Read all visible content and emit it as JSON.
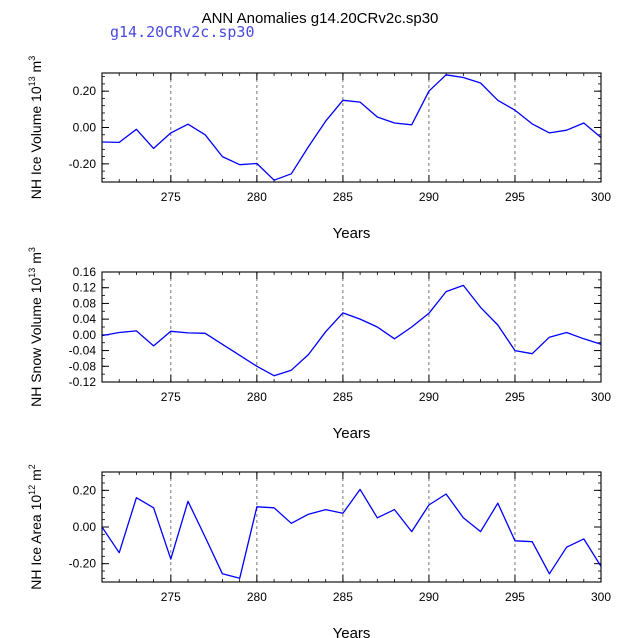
{
  "title": "ANN Anomalies g14.20CRv2c.sp30",
  "subtitle": "g14.20CRv2c.sp30",
  "colors": {
    "line": "#0000ff",
    "axis": "#000000",
    "grid": "#555555",
    "subtitle": "#4a4ae0"
  },
  "chart_data": [
    {
      "type": "line",
      "ylabel": {
        "prefix": "NH Ice Volume 10",
        "exp1": "13",
        "mid": " m",
        "exp2": "3"
      },
      "xlabel": "Years",
      "xlim": [
        271,
        300
      ],
      "ylim": [
        -0.3,
        0.3
      ],
      "xticks": [
        275,
        280,
        285,
        290,
        295,
        300
      ],
      "xtick_labels": [
        "275",
        "280",
        "285",
        "290",
        "295",
        "300"
      ],
      "yticks": [
        0.2,
        0.0,
        -0.2
      ],
      "ytick_labels": [
        "0.20",
        "0.00",
        "-0.20"
      ],
      "grid": "vertical dashed",
      "x": [
        271,
        272,
        273,
        274,
        275,
        276,
        277,
        278,
        279,
        280,
        281,
        282,
        283,
        284,
        285,
        286,
        287,
        288,
        289,
        290,
        291,
        292,
        293,
        294,
        295,
        296,
        297,
        298,
        299,
        300
      ],
      "values": [
        -0.08,
        -0.082,
        -0.01,
        -0.115,
        -0.03,
        0.018,
        -0.04,
        -0.16,
        -0.205,
        -0.198,
        -0.29,
        -0.255,
        -0.105,
        0.035,
        0.15,
        0.14,
        0.058,
        0.025,
        0.015,
        0.2,
        0.29,
        0.275,
        0.245,
        0.15,
        0.095,
        0.02,
        -0.03,
        -0.015,
        0.025,
        -0.055
      ]
    },
    {
      "type": "line",
      "ylabel": {
        "prefix": "NH Snow Volume 10",
        "exp1": "13",
        "mid": " m",
        "exp2": "3"
      },
      "xlabel": "Years",
      "xlim": [
        271,
        300
      ],
      "ylim": [
        -0.12,
        0.16
      ],
      "xticks": [
        275,
        280,
        285,
        290,
        295,
        300
      ],
      "xtick_labels": [
        "275",
        "280",
        "285",
        "290",
        "295",
        "300"
      ],
      "yticks": [
        0.16,
        0.12,
        0.08,
        0.04,
        0.0,
        -0.04,
        -0.08,
        -0.12
      ],
      "ytick_labels": [
        "0.16",
        "0.12",
        "0.08",
        "0.04",
        "0.00",
        "-0.04",
        "-0.08",
        "-0.12"
      ],
      "grid": "vertical dashed",
      "x": [
        271,
        272,
        273,
        274,
        275,
        276,
        277,
        278,
        279,
        280,
        281,
        282,
        283,
        284,
        285,
        286,
        287,
        288,
        289,
        290,
        291,
        292,
        293,
        294,
        295,
        296,
        297,
        298,
        299,
        300
      ],
      "values": [
        -0.002,
        0.006,
        0.01,
        -0.028,
        0.009,
        0.005,
        0.004,
        -0.024,
        -0.052,
        -0.08,
        -0.104,
        -0.09,
        -0.05,
        0.008,
        0.056,
        0.04,
        0.02,
        -0.01,
        0.02,
        0.055,
        0.11,
        0.126,
        0.07,
        0.025,
        -0.04,
        -0.048,
        -0.006,
        0.006,
        -0.01,
        -0.024
      ]
    },
    {
      "type": "line",
      "ylabel": {
        "prefix": "NH Ice Area 10",
        "exp1": "12",
        "mid": " m",
        "exp2": "2"
      },
      "xlabel": "Years",
      "xlim": [
        271,
        300
      ],
      "ylim": [
        -0.3,
        0.3
      ],
      "xticks": [
        275,
        280,
        285,
        290,
        295,
        300
      ],
      "xtick_labels": [
        "275",
        "280",
        "285",
        "290",
        "295",
        "300"
      ],
      "yticks": [
        0.2,
        0.0,
        -0.2
      ],
      "ytick_labels": [
        "0.20",
        "0.00",
        "-0.20"
      ],
      "grid": "vertical dashed",
      "x": [
        271,
        272,
        273,
        274,
        275,
        276,
        277,
        278,
        279,
        280,
        281,
        282,
        283,
        284,
        285,
        286,
        287,
        288,
        289,
        290,
        291,
        292,
        293,
        294,
        295,
        296,
        297,
        298,
        299,
        300
      ],
      "values": [
        0.0,
        -0.14,
        0.16,
        0.105,
        -0.175,
        0.14,
        -0.055,
        -0.255,
        -0.28,
        0.11,
        0.105,
        0.02,
        0.07,
        0.095,
        0.075,
        0.205,
        0.05,
        0.095,
        -0.025,
        0.12,
        0.18,
        0.05,
        -0.025,
        0.13,
        -0.075,
        -0.08,
        -0.255,
        -0.11,
        -0.065,
        -0.215
      ]
    }
  ]
}
